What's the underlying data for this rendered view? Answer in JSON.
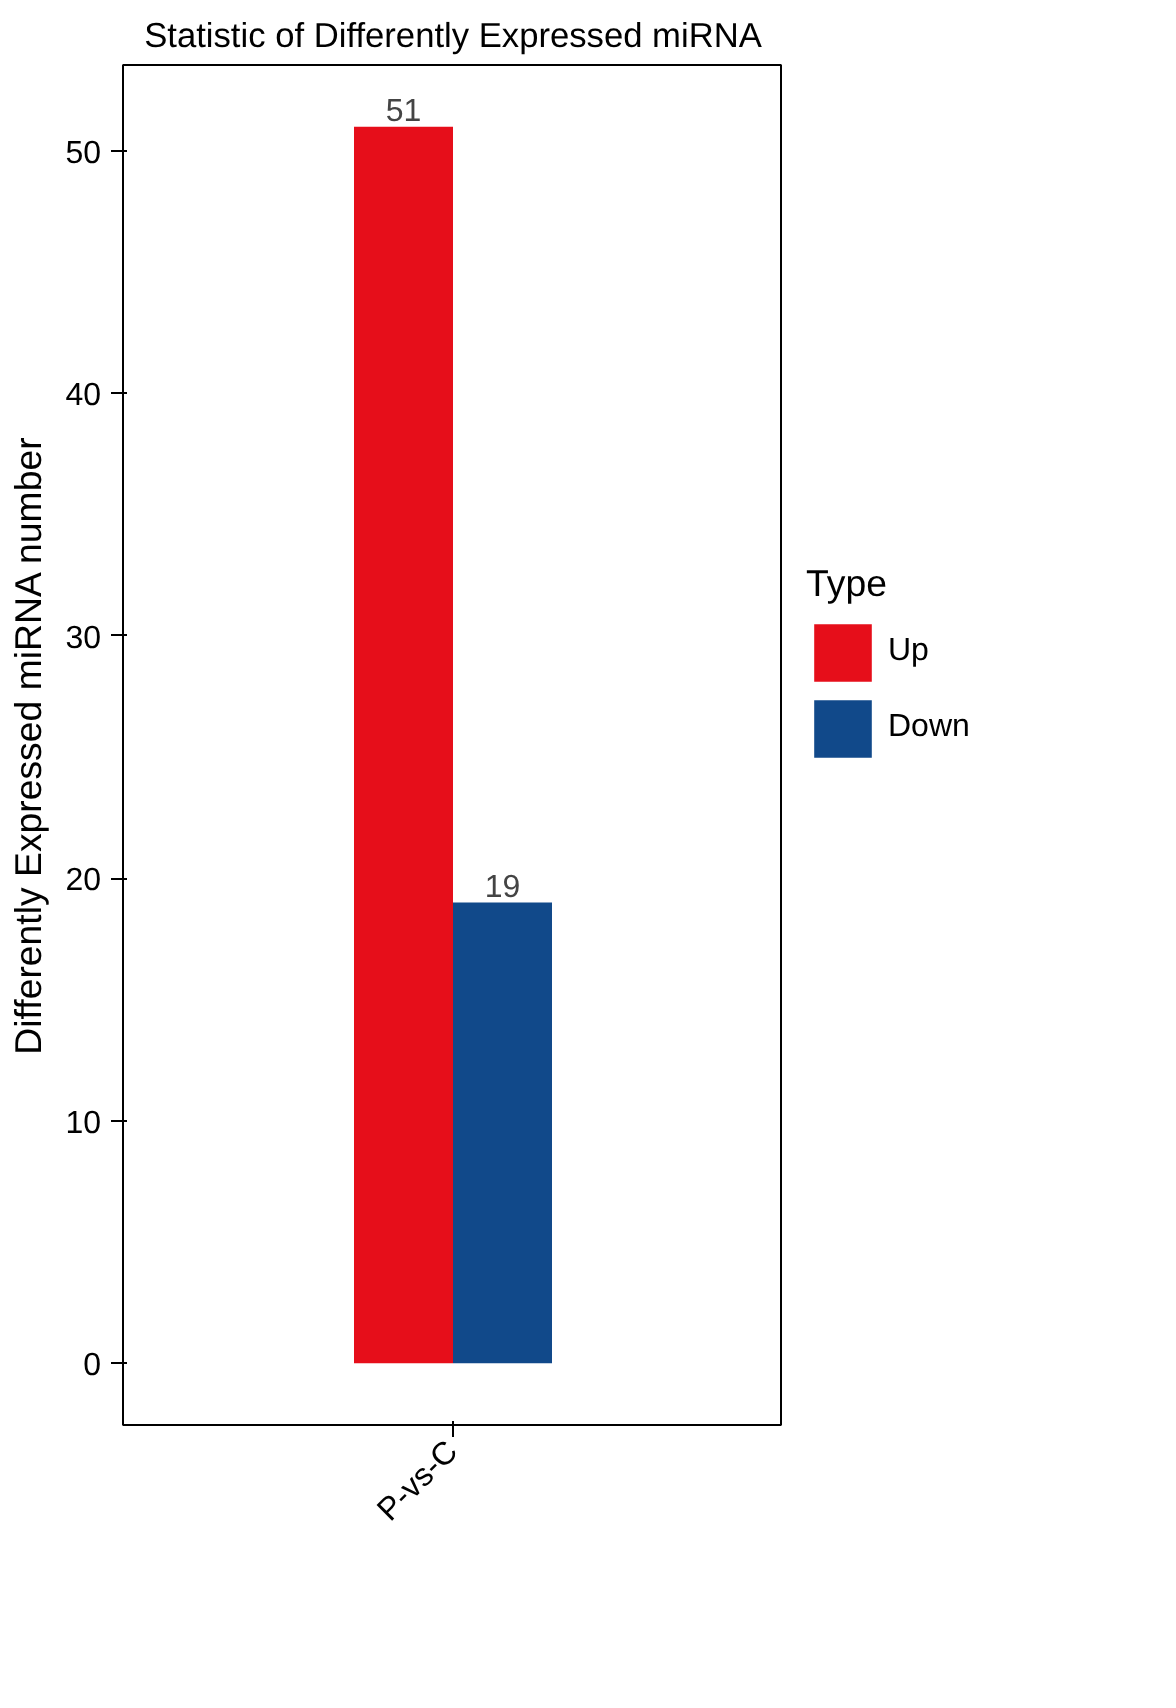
{
  "chart_data": {
    "type": "bar",
    "title": "Statistic of Differently Expressed miRNA",
    "ylabel": "Differently Expressed miRNA number",
    "legend_title": "Type",
    "categories": [
      "P-vs-C"
    ],
    "series": [
      {
        "name": "Up",
        "color": "#e60e1a",
        "values": [
          51
        ]
      },
      {
        "name": "Down",
        "color": "#11498a",
        "values": [
          19
        ]
      }
    ],
    "ylim": [
      -2.55,
      53.55
    ],
    "yticks": [
      0,
      10,
      20,
      30,
      40,
      50
    ],
    "data_labels": true,
    "grid": false,
    "legend": "right"
  }
}
